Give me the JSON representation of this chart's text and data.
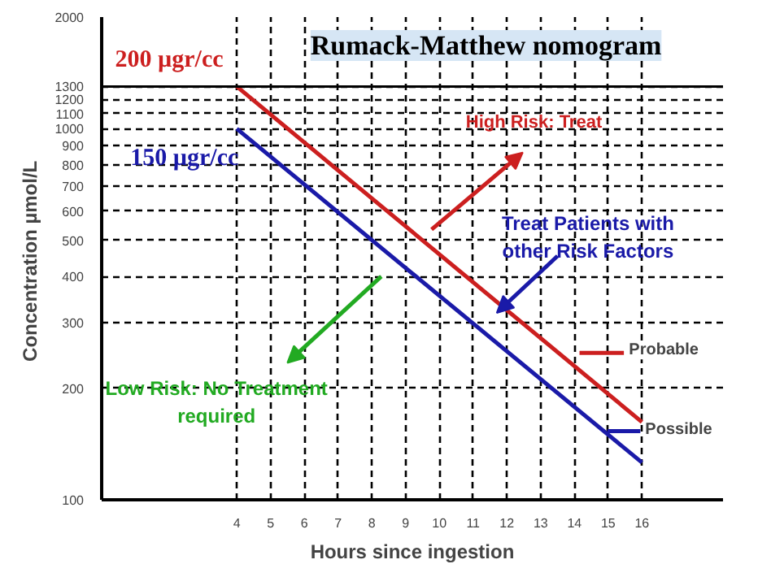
{
  "chart_data": {
    "type": "line",
    "title": "Rumack-Matthew nomogram",
    "xlabel": "Hours since ingestion",
    "ylabel": "Concentration  µmol/L",
    "x": [
      4,
      16
    ],
    "series": [
      {
        "name": "Probable",
        "color": "#cc1f1f",
        "values": [
          1300,
          162
        ]
      },
      {
        "name": "Possible",
        "color": "#1a1aa8",
        "values": [
          1000,
          126
        ]
      }
    ],
    "log": true,
    "xlim": [
      0,
      18.4
    ],
    "ylim": [
      100,
      2000
    ],
    "xticks": [
      4,
      5,
      6,
      7,
      8,
      9,
      10,
      11,
      12,
      13,
      14,
      15,
      16
    ],
    "yticks": [
      100,
      200,
      300,
      400,
      500,
      600,
      700,
      800,
      900,
      1000,
      1100,
      1200,
      1300,
      2000
    ],
    "grid": true,
    "legend": "bottom right",
    "line_style": "solid",
    "marker": "none",
    "ref_lines": [
      {
        "axis": "y",
        "value": 1300,
        "label": null,
        "color": "#000000"
      }
    ],
    "annotations": [
      "200 µgr/cc",
      "150 µgr/cc",
      "High Risk: Treat",
      {
        "text": "Treat Patients with\nother Risk Factors",
        "x": 11.7,
        "y": 319
      },
      "Low Risk: No Treatment\nrequired"
    ]
  }
}
